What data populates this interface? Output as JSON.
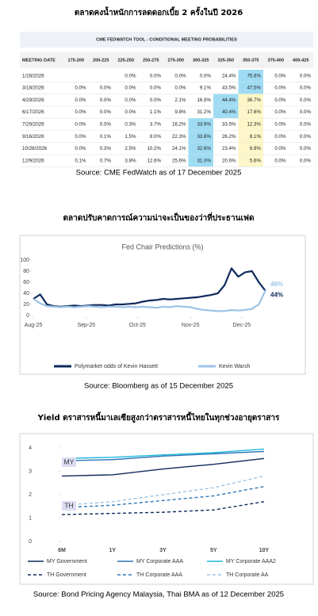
{
  "table_panel": {
    "heading": "ตลาดคงน้ำหนักการลดดอกเบี้ย 2 ครั้งในปี 2026",
    "table": {
      "caption": "CME FEDWATCH TOOL - CONDITIONAL MEETING PROBABILITIES",
      "headers": [
        "MEETING DATE",
        "175-200",
        "200-225",
        "225-250",
        "250-275",
        "275-300",
        "300-325",
        "325-350",
        "350-375",
        "375-400",
        "400-425"
      ],
      "rows": [
        [
          "1/28/2026",
          null,
          null,
          "0.0%",
          "0.0%",
          "0.0%",
          "0.0%",
          "24.4%",
          "75.6%",
          "0.0%",
          "0.0%"
        ],
        [
          "3/18/2026",
          "0.0%",
          "0.0%",
          "0.0%",
          "0.0%",
          "0.0%",
          "9.1%",
          "43.5%",
          "47.5%",
          "0.0%",
          "0.0%"
        ],
        [
          "4/29/2026",
          "0.0%",
          "0.0%",
          "0.0%",
          "0.0%",
          "2.1%",
          "16.9%",
          "44.4%",
          "36.7%",
          "0.0%",
          "0.0%"
        ],
        [
          "6/17/2026",
          "0.0%",
          "0.0%",
          "0.0%",
          "1.1%",
          "9.8%",
          "31.2%",
          "40.4%",
          "17.6%",
          "0.0%",
          "0.0%"
        ],
        [
          "7/29/2026",
          "0.0%",
          "0.0%",
          "0.3%",
          "3.7%",
          "16.2%",
          "33.9%",
          "33.5%",
          "12.3%",
          "0.0%",
          "0.0%"
        ],
        [
          "9/16/2026",
          "0.0%",
          "0.1%",
          "1.5%",
          "8.0%",
          "22.3%",
          "33.8%",
          "26.2%",
          "8.1%",
          "0.0%",
          "0.0%"
        ],
        [
          "10/28/2026",
          "0.0%",
          "0.3%",
          "2.5%",
          "10.2%",
          "24.1%",
          "32.6%",
          "23.4%",
          "6.8%",
          "0.0%",
          "0.0%"
        ],
        [
          "12/9/2026",
          "0.1%",
          "0.7%",
          "3.8%",
          "12.6%",
          "25.6%",
          "31.0%",
          "20.6%",
          "5.6%",
          "0.0%",
          "0.0%"
        ]
      ]
    },
    "source": "Source: CME FedWatch as of 17 December 2025"
  },
  "chart_data": [
    {
      "type": "line",
      "heading": "ตลาดปรับคาดการณ์ความน่าจะเป็นของว่าที่ประธานเฟด",
      "title": "Fed Chair Predictions (%)",
      "x": [
        0,
        4,
        8,
        12,
        16,
        20,
        24,
        28,
        32,
        36,
        40,
        44,
        48,
        52,
        56,
        60,
        64,
        68,
        72,
        76,
        80,
        84,
        88,
        92,
        96,
        100,
        104,
        108,
        112,
        116,
        120,
        124,
        128,
        132,
        136
      ],
      "xlim": [
        0,
        136
      ],
      "xticks": [
        {
          "value": 0,
          "label": "Aug-25"
        },
        {
          "value": 31,
          "label": "Sep-25"
        },
        {
          "value": 61,
          "label": "Oct-25"
        },
        {
          "value": 92,
          "label": "Nov-25"
        },
        {
          "value": 122,
          "label": "Dec-25"
        }
      ],
      "ylim": [
        0,
        100
      ],
      "yticks": [
        0,
        20,
        40,
        60,
        80,
        100
      ],
      "series": [
        {
          "name": "Polymarket odds of Kevin Hassett",
          "color": "#0f2a5c",
          "values": [
            30,
            38,
            20,
            17,
            16,
            17,
            18,
            17,
            18,
            19,
            19,
            18,
            20,
            20,
            21,
            22,
            25,
            27,
            28,
            30,
            29,
            30,
            31,
            32,
            33,
            35,
            37,
            40,
            55,
            85,
            70,
            78,
            80,
            60,
            44
          ],
          "value_labels": [
            null,
            null,
            null,
            null,
            null,
            null,
            null,
            null,
            null,
            null,
            null,
            null,
            null,
            null,
            null,
            null,
            null,
            null,
            null,
            null,
            null,
            null,
            null,
            null,
            null,
            null,
            null,
            null,
            null,
            null,
            null,
            null,
            null,
            null,
            "44%"
          ]
        },
        {
          "name": "Kevin Warsh",
          "color": "#9dc3e6",
          "values": [
            30,
            22,
            17,
            16,
            15,
            16,
            15,
            16,
            17,
            16,
            15,
            16,
            16,
            15,
            16,
            15,
            16,
            15,
            14,
            16,
            15,
            17,
            16,
            15,
            12,
            10,
            9,
            8,
            8,
            10,
            9,
            10,
            12,
            20,
            46
          ],
          "value_labels": [
            null,
            null,
            null,
            null,
            null,
            null,
            null,
            null,
            null,
            null,
            null,
            null,
            null,
            null,
            null,
            null,
            null,
            null,
            null,
            null,
            null,
            null,
            null,
            null,
            null,
            null,
            null,
            null,
            null,
            null,
            null,
            null,
            null,
            null,
            "46%"
          ]
        }
      ],
      "source": "Source: Bloomberg as of 15 December 2025"
    },
    {
      "type": "line",
      "heading": "Yield ตราสารหนี้มาเลเซียสูงกว่าตราสารหนี้ไทยในทุกช่วงอายุตราสาร",
      "categories": [
        "6M",
        "1Y",
        "3Y",
        "5Y",
        "10Y"
      ],
      "ylim": [
        0,
        4
      ],
      "yticks": [
        0,
        1,
        2,
        3,
        4
      ],
      "annotations": [
        "MY",
        "TH"
      ],
      "series": [
        {
          "name": "MY Government",
          "color": "#0f2a5c",
          "dashed": false,
          "values": [
            2.8,
            2.85,
            3.1,
            3.3,
            3.55
          ]
        },
        {
          "name": "MY Corporate AAA",
          "color": "#2e75b6",
          "dashed": false,
          "values": [
            3.45,
            3.5,
            3.65,
            3.75,
            3.85
          ]
        },
        {
          "name": "MY Corporate AAA2",
          "color": "#1fb8d8",
          "dashed": false,
          "values": [
            3.55,
            3.6,
            3.7,
            3.8,
            3.95
          ]
        },
        {
          "name": "TH Government",
          "color": "#0f2a5c",
          "dashed": true,
          "values": [
            1.15,
            1.2,
            1.25,
            1.35,
            1.7
          ]
        },
        {
          "name": "TH Corporate AAA",
          "color": "#2e75b6",
          "dashed": true,
          "values": [
            1.45,
            1.55,
            1.75,
            1.95,
            2.35
          ]
        },
        {
          "name": "TH Corporate AA",
          "color": "#9dc3e6",
          "dashed": true,
          "values": [
            1.55,
            1.7,
            2.0,
            2.3,
            2.8
          ]
        }
      ],
      "source": "Source: Bond Pricing Agency Malaysia, Thai BMA as of 12 December 2025"
    }
  ]
}
